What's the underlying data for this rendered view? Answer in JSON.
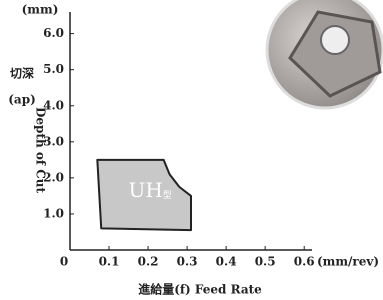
{
  "chart_data": {
    "type": "area",
    "x_unit": "(mm/rev)",
    "y_unit": "(mm)",
    "x_label": "進給量(f) Feed Rate",
    "y_label_cn": "切深",
    "y_label_sym": "(ap)",
    "y_label_en": "Depth of Cut",
    "region_label": "UH",
    "region_label_suffix": "型",
    "x": [
      0.07,
      0.24,
      0.255,
      0.28,
      0.31,
      0.31,
      0.08
    ],
    "y": [
      2.5,
      2.5,
      2.1,
      1.75,
      1.5,
      0.55,
      0.6
    ],
    "color": "#c8c8c8",
    "xlim": [
      0,
      0.62
    ],
    "ylim": [
      0,
      6.6
    ],
    "xticks": [
      0,
      0.1,
      0.2,
      0.3,
      0.4,
      0.5,
      0.6
    ],
    "yticks": [
      {
        "value": 1,
        "label": "1.0"
      },
      {
        "value": 2,
        "label": "2.0"
      },
      {
        "value": 3,
        "label": "3.0"
      },
      {
        "value": 4,
        "label": "4.0"
      },
      {
        "value": 5,
        "label": "5.0"
      },
      {
        "value": 6,
        "label": "6.0"
      }
    ]
  }
}
